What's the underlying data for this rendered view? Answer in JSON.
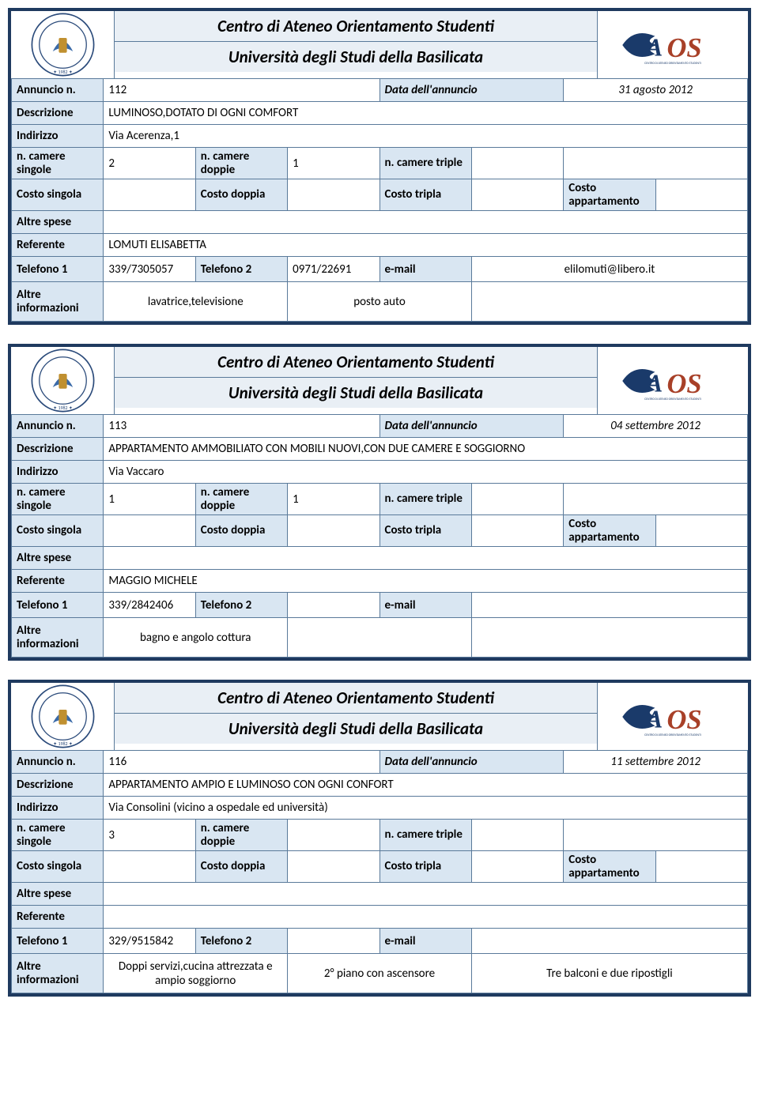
{
  "colors": {
    "border": "#1f3a5f",
    "cell_border": "#5a7a9a",
    "label_bg": "#d9e6f2",
    "title_bg": "#e9eff5"
  },
  "header": {
    "title1": "Centro di Ateneo Orientamento Studenti",
    "title2": "Università degli Studi della Basilicata",
    "unilogo_alt": "Università Basilicata seal",
    "caos_alt": "CAOS logo"
  },
  "labels": {
    "annuncio_n": "Annuncio n.",
    "data_annuncio": "Data dell'annuncio",
    "descrizione": "Descrizione",
    "indirizzo": "Indirizzo",
    "n_singole": "n. camere singole",
    "n_doppie": "n. camere doppie",
    "n_triple": "n. camere triple",
    "costo_singola": "Costo singola",
    "costo_doppia": "Costo doppia",
    "costo_tripla": "Costo tripla",
    "costo_appartamento": "Costo appartamento",
    "altre_spese": "Altre spese",
    "referente": "Referente",
    "telefono1": "Telefono 1",
    "telefono2": "Telefono 2",
    "email": "e-mail",
    "altre_info": "Altre informazioni"
  },
  "listings": [
    {
      "num": "112",
      "date": "31 agosto 2012",
      "desc": "LUMINOSO,DOTATO DI OGNI COMFORT",
      "addr": "Via Acerenza,1",
      "singole": "2",
      "doppie": "1",
      "triple": "",
      "c_singola": "",
      "c_doppia": "",
      "c_tripla": "",
      "c_app": "",
      "spese": "",
      "ref": "LOMUTI ELISABETTA",
      "tel1": "339/7305057",
      "tel2": "0971/22691",
      "email": "elilomuti@libero.it",
      "info1": "lavatrice,televisione",
      "info2": "posto auto",
      "info3": ""
    },
    {
      "num": "113",
      "date": "04 settembre 2012",
      "desc": "APPARTAMENTO AMMOBILIATO CON MOBILI NUOVI,CON DUE CAMERE E SOGGIORNO",
      "addr": "Via Vaccaro",
      "singole": "1",
      "doppie": "1",
      "triple": "",
      "c_singola": "",
      "c_doppia": "",
      "c_tripla": "",
      "c_app": "",
      "spese": "",
      "ref": "MAGGIO MICHELE",
      "tel1": "339/2842406",
      "tel2": "",
      "email": "",
      "info1": "bagno e angolo cottura",
      "info2": "",
      "info3": ""
    },
    {
      "num": "116",
      "date": "11 settembre 2012",
      "desc": "APPARTAMENTO AMPIO E LUMINOSO CON OGNI CONFORT",
      "addr": "Via Consolini (vicino a ospedale ed università)",
      "singole": "3",
      "doppie": "",
      "triple": "",
      "c_singola": "",
      "c_doppia": "",
      "c_tripla": "",
      "c_app": "",
      "spese": "",
      "ref": "",
      "tel1": "329/9515842",
      "tel2": "",
      "email": "",
      "info1": "Doppi servizi,cucina attrezzata e ampio soggiorno",
      "info2": "2° piano con ascensore",
      "info3": "Tre balconi e due ripostigli"
    }
  ]
}
